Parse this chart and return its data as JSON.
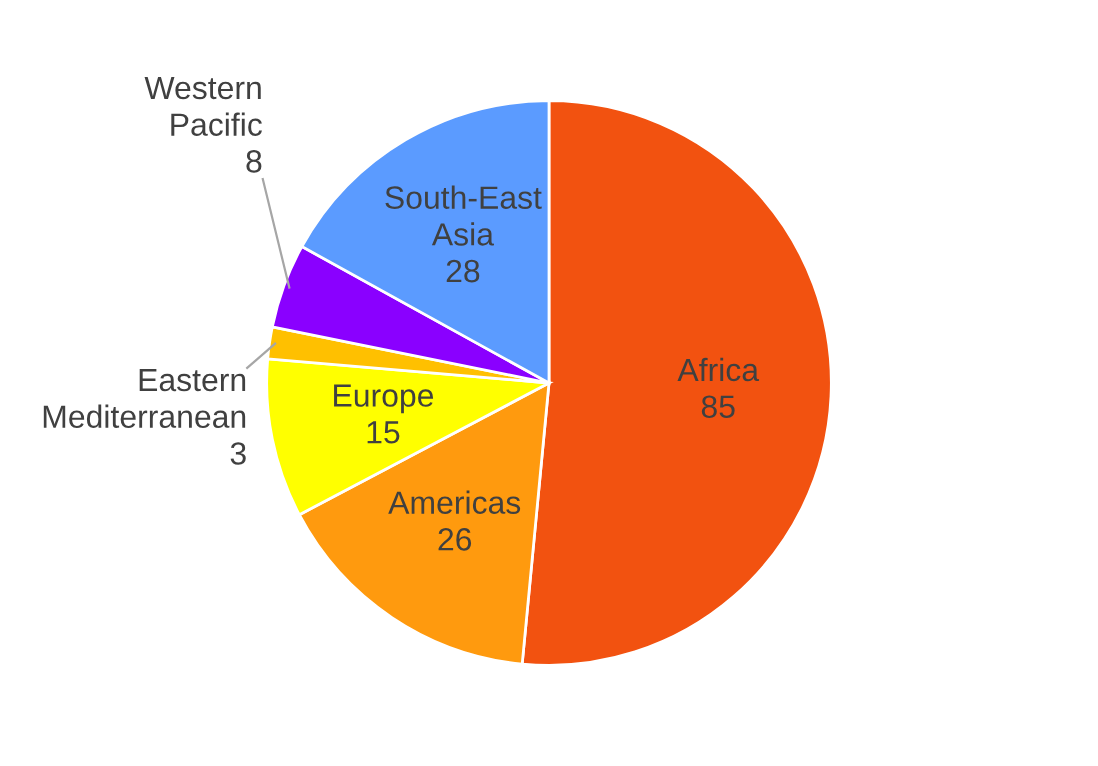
{
  "chart_data": {
    "type": "pie",
    "categories": [
      "Africa",
      "Americas",
      "Europe",
      "Eastern Mediterranean",
      "Western Pacific",
      "South-East Asia"
    ],
    "values": [
      85,
      26,
      15,
      3,
      8,
      28
    ],
    "colors": [
      "#f25210",
      "#ff9a0e",
      "#ffff00",
      "#ffc000",
      "#8a00ff",
      "#5b9bff"
    ],
    "data_labels": true
  }
}
